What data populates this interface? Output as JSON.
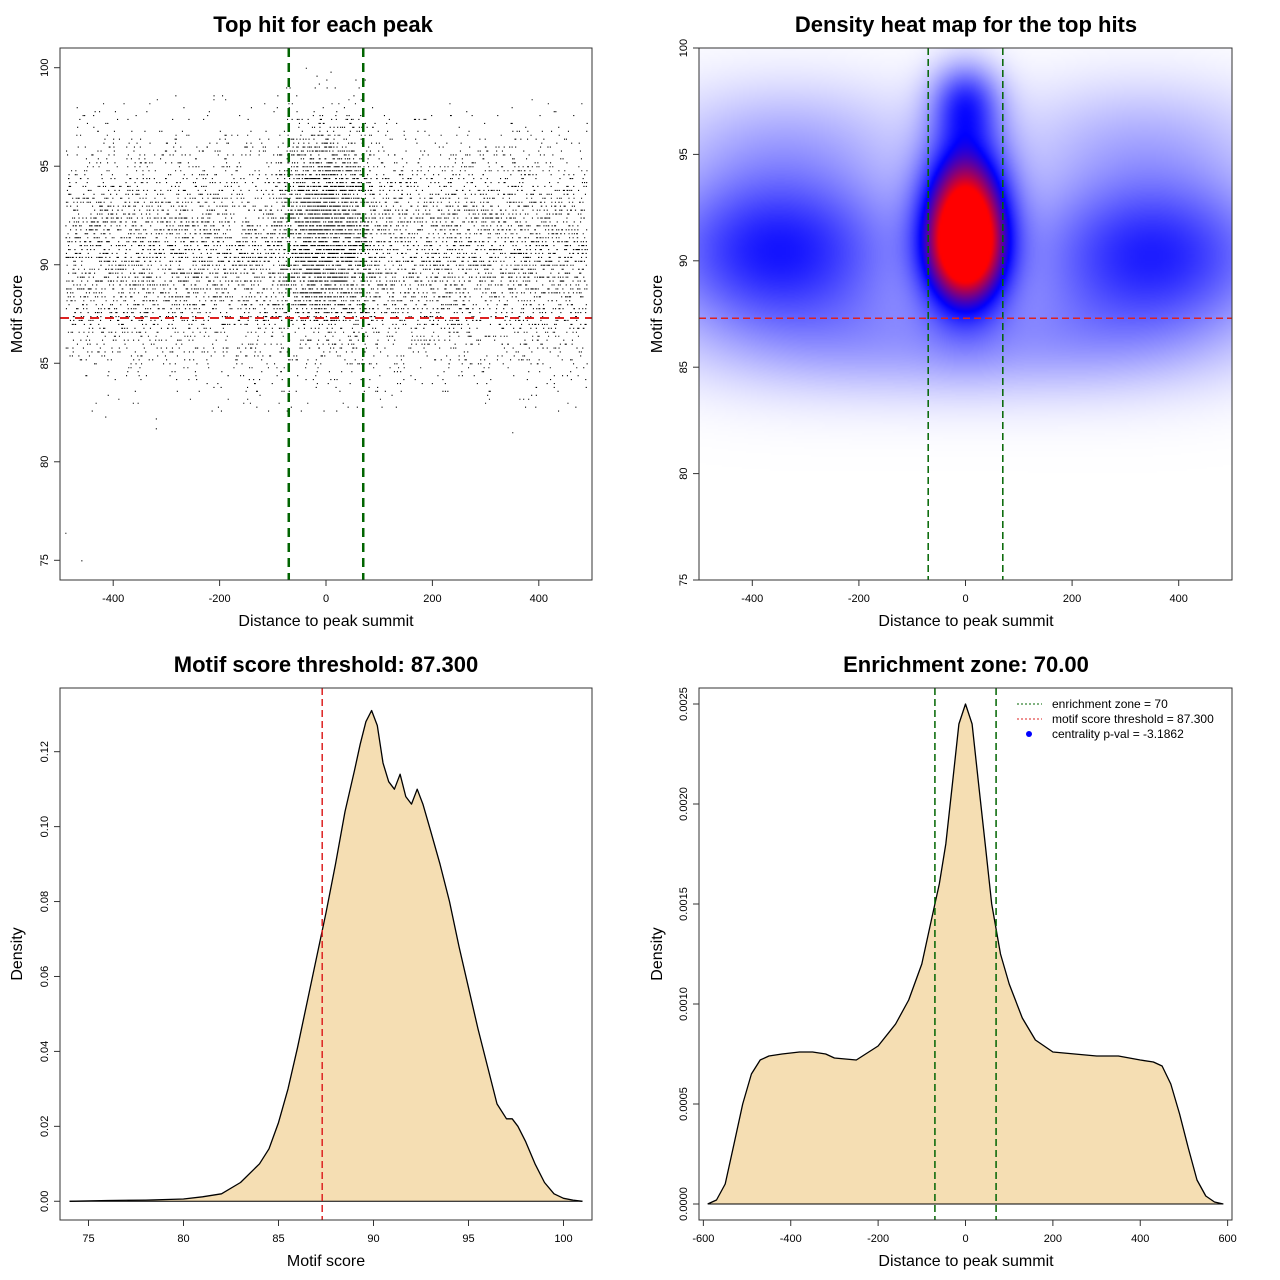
{
  "chart_data": [
    {
      "type": "scatter",
      "title": "Top hit for each peak",
      "xlabel": "Distance to peak summit",
      "ylabel": "Motif score",
      "xlim": [
        -500,
        500
      ],
      "ylim": [
        74,
        101
      ],
      "xticks": [
        -400,
        -200,
        0,
        200,
        400
      ],
      "yticks": [
        75,
        80,
        85,
        90,
        95,
        100
      ],
      "xtick_labels": [
        "-400",
        "-200",
        "0",
        "200",
        "400"
      ],
      "ytick_labels": [
        "75",
        "80",
        "85",
        "90",
        "95",
        "100"
      ],
      "vlines": [
        -70,
        70
      ],
      "hline": 87.3,
      "colors": {
        "points": "#000000",
        "vlines": "#006400",
        "hline": "#dd2222"
      },
      "distribution": {
        "n_background": 7000,
        "background_x_range": [
          -490,
          490
        ],
        "background_y_center": 90.5,
        "background_y_sd": 3.0,
        "n_central": 2000,
        "central_x_sd": 45,
        "central_y_center": 92.2,
        "central_y_sd": 2.6,
        "outliers": [
          [
            -490,
            76.4
          ],
          [
            -460,
            75.0
          ],
          [
            -320,
            81.7
          ],
          [
            350,
            81.5
          ],
          [
            -415,
            82.3
          ],
          [
            -320,
            82.2
          ]
        ]
      }
    },
    {
      "type": "heatmap",
      "title": "Density heat map for the top hits",
      "xlabel": "Distance to peak summit",
      "ylabel": "Motif score",
      "xlim": [
        -500,
        500
      ],
      "ylim": [
        75,
        100
      ],
      "xticks": [
        -400,
        -200,
        0,
        200,
        400
      ],
      "yticks": [
        75,
        80,
        85,
        90,
        95,
        100
      ],
      "xtick_labels": [
        "-400",
        "-200",
        "0",
        "200",
        "400"
      ],
      "ytick_labels": [
        "75",
        "80",
        "85",
        "90",
        "95",
        "100"
      ],
      "vlines": [
        -70,
        70
      ],
      "hline": 87.3,
      "colors": {
        "low": "#ffffff",
        "mid": "#0000ff",
        "high": "#ff0000",
        "vlines": "#006400",
        "hline": "#dd2222"
      },
      "density_blobs": [
        {
          "x": 0,
          "y": 92.0,
          "sx": 55,
          "sy": 2.6,
          "w": 1.0
        },
        {
          "x": 0,
          "y": 90.2,
          "sx": 50,
          "sy": 1.6,
          "w": 0.45
        },
        {
          "x": 0,
          "y": 97.5,
          "sx": 45,
          "sy": 1.3,
          "w": 0.35
        },
        {
          "x": -350,
          "y": 90.5,
          "sx": 170,
          "sy": 2.8,
          "w": 0.5
        },
        {
          "x": 350,
          "y": 90.3,
          "sx": 170,
          "sy": 2.8,
          "w": 0.48
        },
        {
          "x": -330,
          "y": 96.0,
          "sx": 180,
          "sy": 2.0,
          "w": 0.12
        },
        {
          "x": 330,
          "y": 96.0,
          "sx": 180,
          "sy": 2.0,
          "w": 0.12
        },
        {
          "x": 0,
          "y": 86.0,
          "sx": 300,
          "sy": 1.8,
          "w": 0.18
        }
      ]
    },
    {
      "type": "area",
      "title": "Motif score threshold: 87.300",
      "xlabel": "Motif score",
      "ylabel": "Density",
      "xlim": [
        73.5,
        101.5
      ],
      "ylim": [
        -0.005,
        0.137
      ],
      "xticks": [
        75,
        80,
        85,
        90,
        95,
        100
      ],
      "yticks": [
        0.0,
        0.02,
        0.04,
        0.06,
        0.08,
        0.1,
        0.12
      ],
      "xtick_labels": [
        "75",
        "80",
        "85",
        "90",
        "95",
        "100"
      ],
      "ytick_labels": [
        "0.00",
        "0.02",
        "0.04",
        "0.06",
        "0.08",
        "0.10",
        "0.12"
      ],
      "vline": 87.3,
      "colors": {
        "fill": "#f5deb3",
        "line": "#000000",
        "vline": "#dd2222"
      },
      "x": [
        74,
        76,
        78,
        80,
        81,
        82,
        83,
        84,
        84.5,
        85,
        85.5,
        86,
        86.5,
        87,
        87.5,
        88,
        88.5,
        89,
        89.3,
        89.6,
        89.9,
        90.2,
        90.5,
        90.8,
        91.1,
        91.4,
        91.7,
        92,
        92.3,
        92.6,
        93,
        93.5,
        94,
        94.5,
        95,
        95.5,
        96,
        96.5,
        97,
        97.3,
        97.6,
        98,
        98.5,
        99,
        99.5,
        100,
        100.5,
        101
      ],
      "y": [
        0.0,
        0.0002,
        0.0003,
        0.0006,
        0.0012,
        0.002,
        0.005,
        0.01,
        0.014,
        0.021,
        0.03,
        0.041,
        0.053,
        0.065,
        0.077,
        0.09,
        0.104,
        0.115,
        0.122,
        0.128,
        0.131,
        0.127,
        0.117,
        0.112,
        0.11,
        0.114,
        0.108,
        0.106,
        0.11,
        0.106,
        0.099,
        0.09,
        0.08,
        0.068,
        0.057,
        0.046,
        0.036,
        0.026,
        0.022,
        0.022,
        0.02,
        0.016,
        0.01,
        0.005,
        0.002,
        0.0008,
        0.0003,
        0.0
      ]
    },
    {
      "type": "area",
      "title": "Enrichment zone: 70.00",
      "xlabel": "Distance to peak summit",
      "ylabel": "Density",
      "xlim": [
        -610,
        610
      ],
      "ylim": [
        -8e-05,
        0.00258
      ],
      "xticks": [
        -600,
        -400,
        -200,
        0,
        200,
        400,
        600
      ],
      "yticks": [
        0.0,
        0.0005,
        0.001,
        0.0015,
        0.002,
        0.0025
      ],
      "xtick_labels": [
        "-600",
        "-400",
        "-200",
        "0",
        "200",
        "400",
        "600"
      ],
      "ytick_labels": [
        "0.0000",
        "0.0005",
        "0.0010",
        "0.0015",
        "0.0020",
        "0.0025"
      ],
      "vlines": [
        -70,
        70
      ],
      "colors": {
        "fill": "#f5deb3",
        "line": "#000000",
        "vlines": "#006400"
      },
      "legend": {
        "placement": "top-right",
        "entries": [
          {
            "label": "enrichment zone = 70",
            "symbol": "dotted-line",
            "color": "#006400"
          },
          {
            "label": "motif score threshold = 87.300",
            "symbol": "dotted-line",
            "color": "#dd2222"
          },
          {
            "label": "centrality p-val = -3.1862",
            "symbol": "dot",
            "color": "#0000ff"
          }
        ]
      },
      "x": [
        -590,
        -570,
        -550,
        -530,
        -510,
        -490,
        -470,
        -450,
        -420,
        -380,
        -350,
        -320,
        -300,
        -250,
        -200,
        -160,
        -130,
        -100,
        -80,
        -60,
        -45,
        -30,
        -15,
        0,
        15,
        30,
        45,
        60,
        80,
        100,
        130,
        160,
        200,
        250,
        300,
        350,
        400,
        430,
        450,
        470,
        490,
        510,
        530,
        550,
        570,
        590
      ],
      "y": [
        0.0,
        2e-05,
        0.0001,
        0.0003,
        0.0005,
        0.00065,
        0.00072,
        0.00074,
        0.00075,
        0.00076,
        0.00076,
        0.00075,
        0.00073,
        0.00072,
        0.00079,
        0.0009,
        0.00102,
        0.0012,
        0.0014,
        0.0016,
        0.0018,
        0.0021,
        0.0024,
        0.0025,
        0.0024,
        0.0021,
        0.0018,
        0.0015,
        0.00125,
        0.0011,
        0.00093,
        0.00082,
        0.00076,
        0.00075,
        0.00074,
        0.00074,
        0.00072,
        0.00071,
        0.00069,
        0.0006,
        0.00045,
        0.00028,
        0.00012,
        4e-05,
        1e-05,
        0.0
      ]
    }
  ]
}
